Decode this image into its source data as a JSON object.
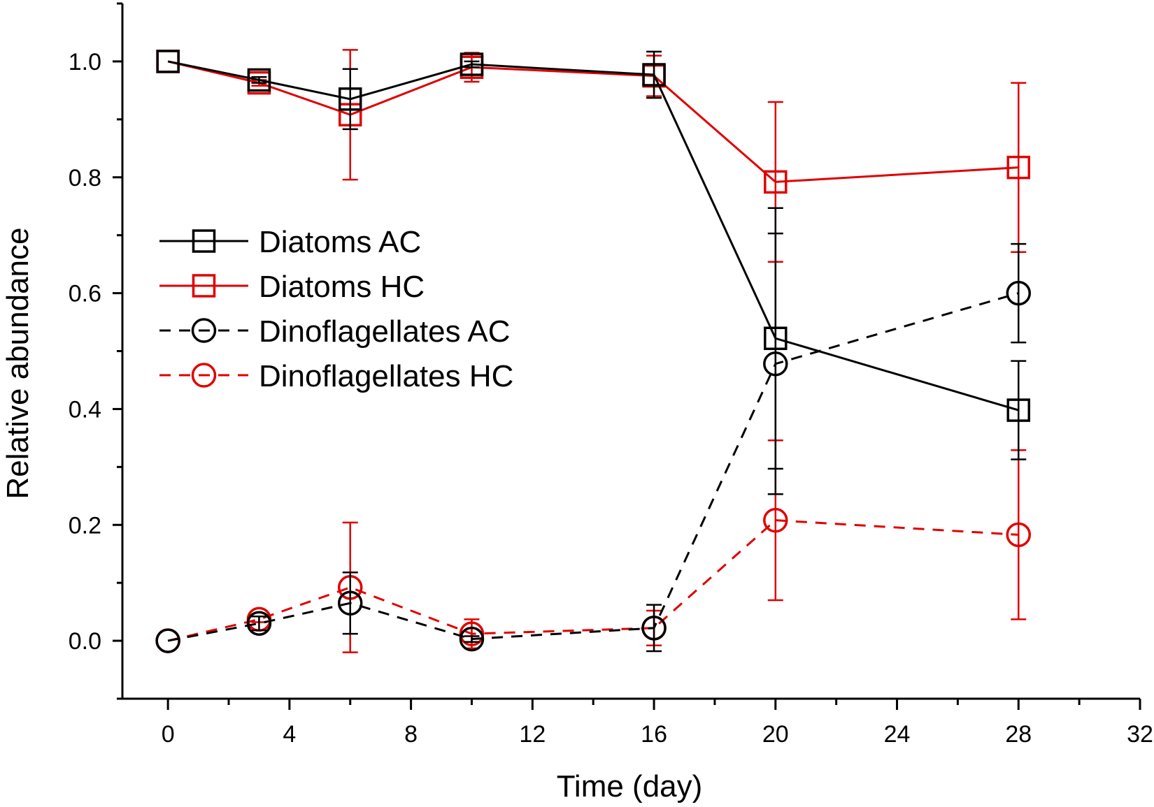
{
  "chart_data": {
    "type": "line",
    "title": "",
    "xlabel": "Time (day)",
    "ylabel": "Relative abundance",
    "xlim": [
      -1.5,
      32
    ],
    "ylim": [
      -0.1,
      1.1
    ],
    "xticks": [
      0,
      4,
      8,
      12,
      16,
      20,
      24,
      28,
      32
    ],
    "xtick_labels": [
      "0",
      "4",
      "8",
      "12",
      "16",
      "20",
      "24",
      "28",
      "32"
    ],
    "yticks": [
      0.0,
      0.2,
      0.4,
      0.6,
      0.8,
      1.0
    ],
    "ytick_labels": [
      "0.0",
      "0.2",
      "0.4",
      "0.6",
      "0.8",
      "1.0"
    ],
    "x": [
      0,
      3,
      6,
      10,
      16,
      20,
      28
    ],
    "legend_position": "center-left",
    "series": [
      {
        "name": "Diatoms AC",
        "color": "#000000",
        "marker": "square",
        "line": "solid",
        "values": [
          1.0,
          0.968,
          0.935,
          0.995,
          0.977,
          0.522,
          0.398
        ],
        "errors": [
          0.0,
          0.005,
          0.052,
          0.005,
          0.04,
          0.225,
          0.085
        ]
      },
      {
        "name": "Diatoms HC",
        "color": "#e00000",
        "marker": "square",
        "line": "solid",
        "values": [
          1.0,
          0.963,
          0.908,
          0.99,
          0.975,
          0.792,
          0.817
        ],
        "errors": [
          0.0,
          0.005,
          0.112,
          0.025,
          0.035,
          0.138,
          0.146
        ]
      },
      {
        "name": "Dinoflagellates AC",
        "color": "#000000",
        "marker": "circle",
        "line": "dashed",
        "values": [
          0.0,
          0.03,
          0.065,
          0.003,
          0.022,
          0.478,
          0.6
        ],
        "errors": [
          0.0,
          0.012,
          0.053,
          0.005,
          0.04,
          0.225,
          0.085
        ]
      },
      {
        "name": "Dinoflagellates HC",
        "color": "#e00000",
        "marker": "circle",
        "line": "dashed",
        "values": [
          0.0,
          0.037,
          0.092,
          0.012,
          0.022,
          0.208,
          0.183
        ],
        "errors": [
          0.0,
          0.005,
          0.112,
          0.025,
          0.03,
          0.138,
          0.146
        ]
      }
    ]
  }
}
